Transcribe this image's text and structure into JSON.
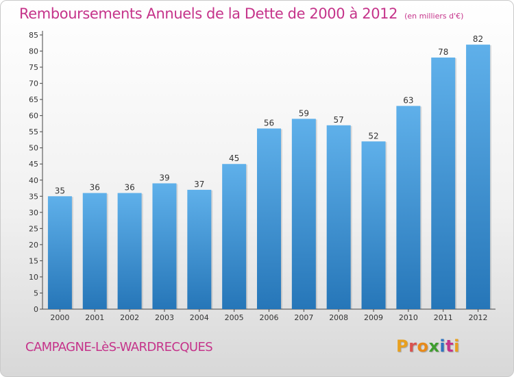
{
  "chart_data": {
    "type": "bar",
    "title": "Remboursements Annuels de la Dette de 2000 à 2012",
    "subtitle": "(en milliers d'€)",
    "categories": [
      "2000",
      "2001",
      "2002",
      "2003",
      "2004",
      "2005",
      "2006",
      "2007",
      "2008",
      "2009",
      "2010",
      "2011",
      "2012"
    ],
    "values": [
      35,
      36,
      36,
      39,
      37,
      45,
      56,
      59,
      57,
      52,
      63,
      78,
      82
    ],
    "ylim": [
      0,
      85
    ],
    "yticks": [
      0,
      5,
      10,
      15,
      20,
      25,
      30,
      35,
      40,
      45,
      50,
      55,
      60,
      65,
      70,
      75,
      80,
      85
    ],
    "grid": false,
    "bar_color": "#3f8fd2",
    "bar_color_top": "#5fb0ea",
    "bar_color_bottom": "#2676b8"
  },
  "footer": {
    "place": "CAMPAGNE-LèS-WARDRECQUES",
    "logo": "Proxiti",
    "logo_colors": [
      "#e8a020",
      "#d9534f",
      "#e88a1a",
      "#3e9d2e",
      "#2f74c0",
      "#c5338a",
      "#e8a020"
    ]
  },
  "colors": {
    "text_accent": "#c5338a",
    "axis": "#333333"
  }
}
